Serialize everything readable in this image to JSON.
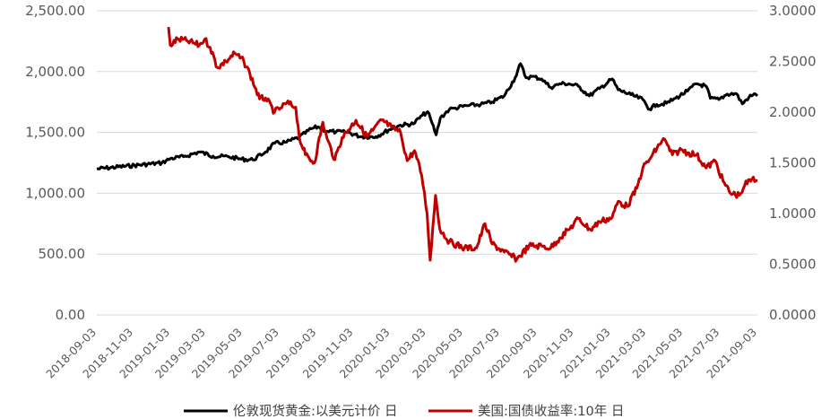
{
  "chart_data": {
    "type": "line",
    "title": "",
    "grid": true,
    "legend_position": "bottom",
    "y_left": {
      "min": 0,
      "max": 2500,
      "ticks": [
        0,
        500,
        1000,
        1500,
        2000,
        2500
      ],
      "tick_labels": [
        "0.00",
        "500.00",
        "1,000.00",
        "1,500.00",
        "2,000.00",
        "2,500.00"
      ]
    },
    "y_right": {
      "min": 0,
      "max": 3,
      "ticks": [
        0,
        0.5,
        1,
        1.5,
        2,
        2.5,
        3
      ],
      "tick_labels": [
        "0.0000",
        "0.5000",
        "1.0000",
        "1.5000",
        "2.0000",
        "2.5000",
        "3.0000"
      ]
    },
    "x_axis": {
      "start": "2018-09-03",
      "end": "2021-09-03",
      "tick_labels": [
        "2018-09-03",
        "2018-11-03",
        "2019-01-03",
        "2019-03-03",
        "2019-05-03",
        "2019-07-03",
        "2019-09-03",
        "2019-11-03",
        "2020-01-03",
        "2020-03-03",
        "2020-05-03",
        "2020-07-03",
        "2020-09-03",
        "2020-11-03",
        "2021-01-03",
        "2021-03-03",
        "2021-05-03",
        "2021-07-03",
        "2021-09-03"
      ]
    },
    "series": [
      {
        "name": "伦敦现货黄金:以美元计价 日",
        "color": "#000000",
        "axis": "left",
        "points": [
          [
            "2018-09-03",
            1200
          ],
          [
            "2018-12-20",
            1250
          ],
          [
            "2019-01-03",
            1285
          ],
          [
            "2019-01-25",
            1300
          ],
          [
            "2019-02-20",
            1340
          ],
          [
            "2019-03-15",
            1305
          ],
          [
            "2019-04-10",
            1300
          ],
          [
            "2019-05-01",
            1280
          ],
          [
            "2019-05-20",
            1275
          ],
          [
            "2019-06-10",
            1340
          ],
          [
            "2019-06-25",
            1410
          ],
          [
            "2019-07-15",
            1420
          ],
          [
            "2019-08-05",
            1460
          ],
          [
            "2019-08-25",
            1530
          ],
          [
            "2019-09-05",
            1545
          ],
          [
            "2019-09-20",
            1510
          ],
          [
            "2019-10-05",
            1505
          ],
          [
            "2019-10-25",
            1500
          ],
          [
            "2019-11-15",
            1465
          ],
          [
            "2019-12-10",
            1465
          ],
          [
            "2019-12-31",
            1520
          ],
          [
            "2020-01-20",
            1560
          ],
          [
            "2020-02-10",
            1570
          ],
          [
            "2020-02-25",
            1640
          ],
          [
            "2020-03-05",
            1670
          ],
          [
            "2020-03-12",
            1580
          ],
          [
            "2020-03-19",
            1480
          ],
          [
            "2020-03-26",
            1620
          ],
          [
            "2020-04-10",
            1690
          ],
          [
            "2020-04-20",
            1700
          ],
          [
            "2020-05-10",
            1720
          ],
          [
            "2020-06-01",
            1730
          ],
          [
            "2020-06-20",
            1750
          ],
          [
            "2020-07-10",
            1800
          ],
          [
            "2020-07-28",
            1950
          ],
          [
            "2020-08-06",
            2065
          ],
          [
            "2020-08-15",
            1950
          ],
          [
            "2020-08-25",
            1960
          ],
          [
            "2020-09-10",
            1940
          ],
          [
            "2020-09-25",
            1870
          ],
          [
            "2020-10-10",
            1900
          ],
          [
            "2020-10-25",
            1900
          ],
          [
            "2020-11-10",
            1880
          ],
          [
            "2020-11-28",
            1800
          ],
          [
            "2020-12-15",
            1860
          ],
          [
            "2021-01-05",
            1940
          ],
          [
            "2021-01-15",
            1850
          ],
          [
            "2021-02-05",
            1810
          ],
          [
            "2021-02-25",
            1770
          ],
          [
            "2021-03-08",
            1690
          ],
          [
            "2021-03-20",
            1730
          ],
          [
            "2021-04-05",
            1740
          ],
          [
            "2021-04-20",
            1780
          ],
          [
            "2021-05-10",
            1840
          ],
          [
            "2021-05-25",
            1900
          ],
          [
            "2021-06-10",
            1880
          ],
          [
            "2021-06-17",
            1780
          ],
          [
            "2021-07-01",
            1770
          ],
          [
            "2021-07-15",
            1815
          ],
          [
            "2021-07-30",
            1820
          ],
          [
            "2021-08-09",
            1735
          ],
          [
            "2021-08-20",
            1790
          ],
          [
            "2021-08-31",
            1815
          ],
          [
            "2021-09-03",
            1800
          ]
        ]
      },
      {
        "name": "美国:国债收益率:10年 日",
        "color": "#c00000",
        "axis": "right",
        "points": [
          [
            "2018-12-31",
            2.84
          ],
          [
            "2019-01-03",
            2.66
          ],
          [
            "2019-01-15",
            2.72
          ],
          [
            "2019-02-01",
            2.7
          ],
          [
            "2019-02-20",
            2.66
          ],
          [
            "2019-03-01",
            2.72
          ],
          [
            "2019-03-10",
            2.64
          ],
          [
            "2019-03-22",
            2.44
          ],
          [
            "2019-04-05",
            2.5
          ],
          [
            "2019-04-20",
            2.58
          ],
          [
            "2019-05-05",
            2.5
          ],
          [
            "2019-05-15",
            2.38
          ],
          [
            "2019-05-31",
            2.13
          ],
          [
            "2019-06-10",
            2.14
          ],
          [
            "2019-06-25",
            2.0
          ],
          [
            "2019-07-05",
            2.04
          ],
          [
            "2019-07-15",
            2.09
          ],
          [
            "2019-07-30",
            2.05
          ],
          [
            "2019-08-05",
            1.75
          ],
          [
            "2019-08-15",
            1.58
          ],
          [
            "2019-08-30",
            1.5
          ],
          [
            "2019-09-13",
            1.9
          ],
          [
            "2019-09-20",
            1.74
          ],
          [
            "2019-10-03",
            1.53
          ],
          [
            "2019-10-15",
            1.75
          ],
          [
            "2019-11-07",
            1.92
          ],
          [
            "2019-11-25",
            1.76
          ],
          [
            "2019-12-05",
            1.82
          ],
          [
            "2019-12-20",
            1.92
          ],
          [
            "2020-01-05",
            1.85
          ],
          [
            "2020-01-20",
            1.8
          ],
          [
            "2020-01-31",
            1.52
          ],
          [
            "2020-02-12",
            1.62
          ],
          [
            "2020-02-24",
            1.38
          ],
          [
            "2020-03-04",
            1.0
          ],
          [
            "2020-03-09",
            0.54
          ],
          [
            "2020-03-18",
            1.18
          ],
          [
            "2020-03-25",
            0.85
          ],
          [
            "2020-04-10",
            0.72
          ],
          [
            "2020-05-05",
            0.66
          ],
          [
            "2020-05-25",
            0.66
          ],
          [
            "2020-06-08",
            0.9
          ],
          [
            "2020-06-20",
            0.7
          ],
          [
            "2020-07-10",
            0.62
          ],
          [
            "2020-07-31",
            0.55
          ],
          [
            "2020-08-20",
            0.68
          ],
          [
            "2020-09-10",
            0.68
          ],
          [
            "2020-09-25",
            0.66
          ],
          [
            "2020-10-10",
            0.76
          ],
          [
            "2020-10-25",
            0.84
          ],
          [
            "2020-11-10",
            0.95
          ],
          [
            "2020-11-30",
            0.84
          ],
          [
            "2020-12-15",
            0.92
          ],
          [
            "2021-01-05",
            0.96
          ],
          [
            "2021-01-15",
            1.12
          ],
          [
            "2021-01-30",
            1.07
          ],
          [
            "2021-02-15",
            1.25
          ],
          [
            "2021-02-25",
            1.45
          ],
          [
            "2021-03-10",
            1.55
          ],
          [
            "2021-03-31",
            1.74
          ],
          [
            "2021-04-15",
            1.58
          ],
          [
            "2021-04-30",
            1.63
          ],
          [
            "2021-05-10",
            1.6
          ],
          [
            "2021-05-25",
            1.58
          ],
          [
            "2021-06-10",
            1.45
          ],
          [
            "2021-06-25",
            1.52
          ],
          [
            "2021-07-08",
            1.32
          ],
          [
            "2021-07-20",
            1.2
          ],
          [
            "2021-08-04",
            1.18
          ],
          [
            "2021-08-13",
            1.28
          ],
          [
            "2021-08-25",
            1.34
          ],
          [
            "2021-09-03",
            1.32
          ]
        ]
      }
    ]
  }
}
